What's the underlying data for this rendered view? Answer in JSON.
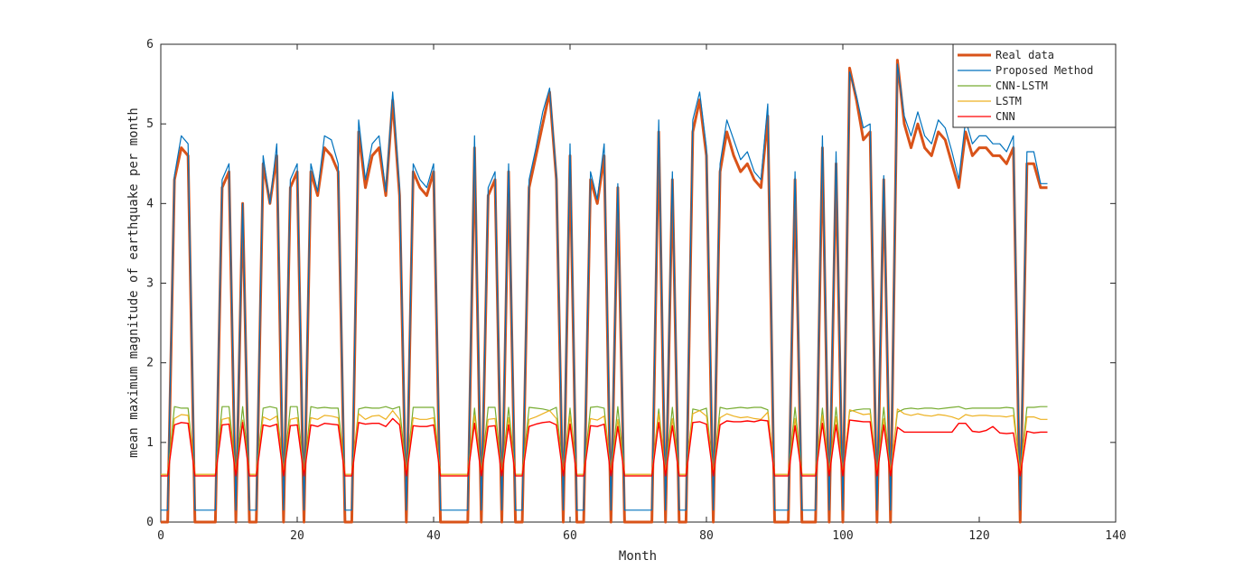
{
  "chart_data": {
    "type": "line",
    "title": "",
    "xlabel": "Month",
    "ylabel": "mean maximum magnitude of earthquake per month",
    "xlim": [
      0,
      140
    ],
    "ylim": [
      0,
      6
    ],
    "xticks": [
      0,
      20,
      40,
      60,
      80,
      100,
      120,
      140
    ],
    "yticks": [
      0,
      1,
      2,
      3,
      4,
      5,
      6
    ],
    "grid": false,
    "legend_position": "top-right",
    "x": [
      0,
      1,
      2,
      3,
      4,
      5,
      6,
      7,
      8,
      9,
      10,
      11,
      12,
      13,
      14,
      15,
      16,
      17,
      18,
      19,
      20,
      21,
      22,
      23,
      24,
      25,
      26,
      27,
      28,
      29,
      30,
      31,
      32,
      33,
      34,
      35,
      36,
      37,
      38,
      39,
      40,
      41,
      42,
      43,
      44,
      45,
      46,
      47,
      48,
      49,
      50,
      51,
      52,
      53,
      54,
      55,
      56,
      57,
      58,
      59,
      60,
      61,
      62,
      63,
      64,
      65,
      66,
      67,
      68,
      69,
      70,
      71,
      72,
      73,
      74,
      75,
      76,
      77,
      78,
      79,
      80,
      81,
      82,
      83,
      84,
      85,
      86,
      87,
      88,
      89,
      90,
      91,
      92,
      93,
      94,
      95,
      96,
      97,
      98,
      99,
      100,
      101,
      102,
      103,
      104,
      105,
      106,
      107,
      108,
      109,
      110,
      111,
      112,
      113,
      114,
      115,
      116,
      117,
      118,
      119,
      120,
      121,
      122,
      123,
      124,
      125,
      126,
      127,
      128,
      129,
      130
    ],
    "series": [
      {
        "name": "Real data",
        "color": "#D95319",
        "values": [
          0,
          0,
          4.3,
          4.7,
          4.6,
          0,
          0,
          0,
          0,
          4.2,
          4.4,
          0,
          4.0,
          0,
          0,
          4.5,
          4.0,
          4.6,
          0,
          4.2,
          4.4,
          0,
          4.4,
          4.1,
          4.7,
          4.6,
          4.4,
          0,
          0,
          4.9,
          4.2,
          4.6,
          4.7,
          4.1,
          5.3,
          4.1,
          0,
          4.4,
          4.2,
          4.1,
          4.4,
          0,
          0,
          0,
          0,
          0,
          4.7,
          0,
          4.1,
          4.3,
          0,
          4.4,
          0,
          0,
          4.2,
          4.6,
          5.0,
          5.4,
          4.3,
          0,
          4.6,
          0,
          0,
          4.3,
          4.0,
          4.6,
          0,
          4.2,
          0,
          0,
          0,
          0,
          0,
          4.9,
          0,
          4.3,
          0,
          0,
          4.9,
          5.3,
          4.6,
          0,
          4.4,
          4.9,
          4.6,
          4.4,
          4.5,
          4.3,
          4.2,
          5.1,
          0,
          0,
          0,
          4.3,
          0,
          0,
          0,
          4.7,
          0,
          4.5,
          0,
          5.7,
          5.3,
          4.8,
          4.9,
          0,
          4.3,
          0,
          5.8,
          5.0,
          4.7,
          5.0,
          4.7,
          4.6,
          4.9,
          4.8,
          4.5,
          4.2,
          4.9,
          4.6,
          4.7,
          4.7,
          4.6,
          4.6,
          4.5,
          4.7,
          0,
          4.5,
          4.5,
          4.2,
          4.2
        ]
      },
      {
        "name": "Proposed Method",
        "color": "#0072BD",
        "values": [
          0.15,
          0.15,
          4.35,
          4.85,
          4.75,
          0.15,
          0.15,
          0.15,
          0.15,
          4.3,
          4.5,
          0.15,
          4.0,
          0.15,
          0.15,
          4.6,
          4.0,
          4.75,
          0.15,
          4.3,
          4.5,
          0.15,
          4.5,
          4.15,
          4.85,
          4.8,
          4.5,
          0.15,
          0.15,
          5.05,
          4.3,
          4.75,
          4.85,
          4.15,
          5.4,
          4.2,
          0.15,
          4.5,
          4.3,
          4.2,
          4.5,
          0.15,
          0.15,
          0.15,
          0.15,
          0.15,
          4.85,
          0.15,
          4.2,
          4.4,
          0.15,
          4.5,
          0.15,
          0.15,
          4.3,
          4.7,
          5.15,
          5.45,
          4.35,
          0.15,
          4.75,
          0.15,
          0.15,
          4.4,
          4.05,
          4.75,
          0.15,
          4.25,
          0.15,
          0.15,
          0.15,
          0.15,
          0.15,
          5.05,
          0.15,
          4.4,
          0.15,
          0.15,
          5.05,
          5.4,
          4.7,
          0.15,
          4.5,
          5.05,
          4.8,
          4.55,
          4.65,
          4.4,
          4.3,
          5.25,
          0.15,
          0.15,
          0.15,
          4.4,
          0.15,
          0.15,
          0.15,
          4.85,
          0.15,
          4.65,
          0.15,
          5.65,
          5.35,
          4.95,
          5.0,
          0.15,
          4.35,
          0.15,
          5.75,
          5.1,
          4.85,
          5.15,
          4.85,
          4.75,
          5.05,
          4.95,
          4.65,
          4.3,
          5.05,
          4.75,
          4.85,
          4.85,
          4.75,
          4.75,
          4.65,
          4.85,
          0.15,
          4.65,
          4.65,
          4.25,
          4.25
        ]
      },
      {
        "name": "CNN-LSTM",
        "color": "#77AC30",
        "values": [
          0.6,
          0.6,
          1.45,
          1.43,
          1.43,
          0.6,
          0.6,
          0.6,
          0.6,
          1.45,
          1.45,
          0.6,
          1.45,
          0.6,
          0.6,
          1.43,
          1.45,
          1.43,
          0.6,
          1.45,
          1.45,
          0.6,
          1.45,
          1.43,
          1.44,
          1.43,
          1.43,
          0.6,
          0.6,
          1.42,
          1.44,
          1.43,
          1.43,
          1.45,
          1.42,
          1.45,
          0.6,
          1.44,
          1.44,
          1.44,
          1.44,
          0.6,
          0.6,
          0.6,
          0.6,
          0.6,
          1.43,
          0.6,
          1.44,
          1.44,
          0.6,
          1.44,
          0.6,
          0.6,
          1.44,
          1.43,
          1.42,
          1.4,
          1.44,
          0.6,
          1.43,
          0.6,
          0.6,
          1.44,
          1.45,
          1.43,
          0.6,
          1.45,
          0.6,
          0.6,
          0.6,
          0.6,
          0.6,
          1.42,
          0.6,
          1.44,
          0.6,
          0.6,
          1.42,
          1.4,
          1.43,
          0.6,
          1.44,
          1.42,
          1.43,
          1.44,
          1.43,
          1.44,
          1.44,
          1.41,
          0.6,
          0.6,
          0.6,
          1.44,
          0.6,
          0.6,
          0.6,
          1.43,
          0.6,
          1.44,
          0.6,
          1.39,
          1.41,
          1.42,
          1.42,
          0.6,
          1.44,
          0.6,
          1.38,
          1.42,
          1.43,
          1.42,
          1.43,
          1.43,
          1.42,
          1.43,
          1.44,
          1.45,
          1.42,
          1.43,
          1.43,
          1.43,
          1.43,
          1.43,
          1.44,
          1.43,
          0.6,
          1.44,
          1.44,
          1.45,
          1.45
        ]
      },
      {
        "name": "LSTM",
        "color": "#EDB120",
        "values": [
          0.6,
          0.6,
          1.3,
          1.35,
          1.34,
          0.6,
          0.6,
          0.6,
          0.6,
          1.29,
          1.31,
          0.6,
          1.28,
          0.6,
          0.6,
          1.32,
          1.28,
          1.33,
          0.6,
          1.29,
          1.31,
          0.6,
          1.31,
          1.29,
          1.34,
          1.33,
          1.31,
          0.6,
          0.6,
          1.36,
          1.29,
          1.33,
          1.34,
          1.29,
          1.4,
          1.29,
          0.6,
          1.31,
          1.29,
          1.29,
          1.31,
          0.6,
          0.6,
          0.6,
          0.6,
          0.6,
          1.34,
          0.6,
          1.29,
          1.3,
          0.6,
          1.31,
          0.6,
          0.6,
          1.29,
          1.32,
          1.36,
          1.4,
          1.3,
          0.6,
          1.33,
          0.6,
          0.6,
          1.3,
          1.28,
          1.33,
          0.6,
          1.29,
          0.6,
          0.6,
          0.6,
          0.6,
          0.6,
          1.36,
          0.6,
          1.3,
          0.6,
          0.6,
          1.36,
          1.4,
          1.33,
          0.6,
          1.31,
          1.36,
          1.33,
          1.31,
          1.32,
          1.3,
          1.29,
          1.38,
          0.6,
          0.6,
          0.6,
          1.3,
          0.6,
          0.6,
          0.6,
          1.34,
          0.6,
          1.32,
          0.6,
          1.41,
          1.38,
          1.35,
          1.36,
          0.6,
          1.3,
          0.6,
          1.42,
          1.36,
          1.34,
          1.36,
          1.34,
          1.33,
          1.35,
          1.34,
          1.32,
          1.29,
          1.35,
          1.33,
          1.34,
          1.34,
          1.33,
          1.33,
          1.32,
          1.34,
          0.6,
          1.32,
          1.32,
          1.29,
          1.29
        ]
      },
      {
        "name": "CNN",
        "color": "#FF0000",
        "values": [
          0.58,
          0.58,
          1.22,
          1.25,
          1.24,
          0.58,
          0.58,
          0.58,
          0.58,
          1.22,
          1.23,
          0.58,
          1.25,
          0.58,
          0.58,
          1.22,
          1.2,
          1.23,
          0.58,
          1.21,
          1.22,
          0.58,
          1.22,
          1.2,
          1.24,
          1.23,
          1.22,
          0.58,
          0.58,
          1.25,
          1.23,
          1.24,
          1.24,
          1.2,
          1.3,
          1.22,
          0.58,
          1.21,
          1.2,
          1.2,
          1.22,
          0.58,
          0.58,
          0.58,
          0.58,
          0.58,
          1.24,
          0.58,
          1.2,
          1.21,
          0.58,
          1.22,
          0.58,
          0.58,
          1.2,
          1.23,
          1.25,
          1.26,
          1.22,
          0.58,
          1.23,
          0.58,
          0.58,
          1.21,
          1.2,
          1.23,
          0.58,
          1.2,
          0.58,
          0.58,
          0.58,
          0.58,
          0.58,
          1.25,
          0.58,
          1.21,
          0.58,
          0.58,
          1.25,
          1.26,
          1.23,
          0.58,
          1.22,
          1.27,
          1.26,
          1.26,
          1.27,
          1.26,
          1.28,
          1.27,
          0.58,
          0.58,
          0.58,
          1.21,
          0.58,
          0.58,
          0.58,
          1.24,
          0.58,
          1.22,
          0.58,
          1.28,
          1.27,
          1.26,
          1.26,
          0.58,
          1.22,
          0.58,
          1.19,
          1.13,
          1.13,
          1.13,
          1.13,
          1.13,
          1.13,
          1.13,
          1.13,
          1.24,
          1.24,
          1.14,
          1.13,
          1.15,
          1.2,
          1.12,
          1.11,
          1.12,
          0.58,
          1.14,
          1.12,
          1.13,
          1.13
        ]
      }
    ]
  }
}
